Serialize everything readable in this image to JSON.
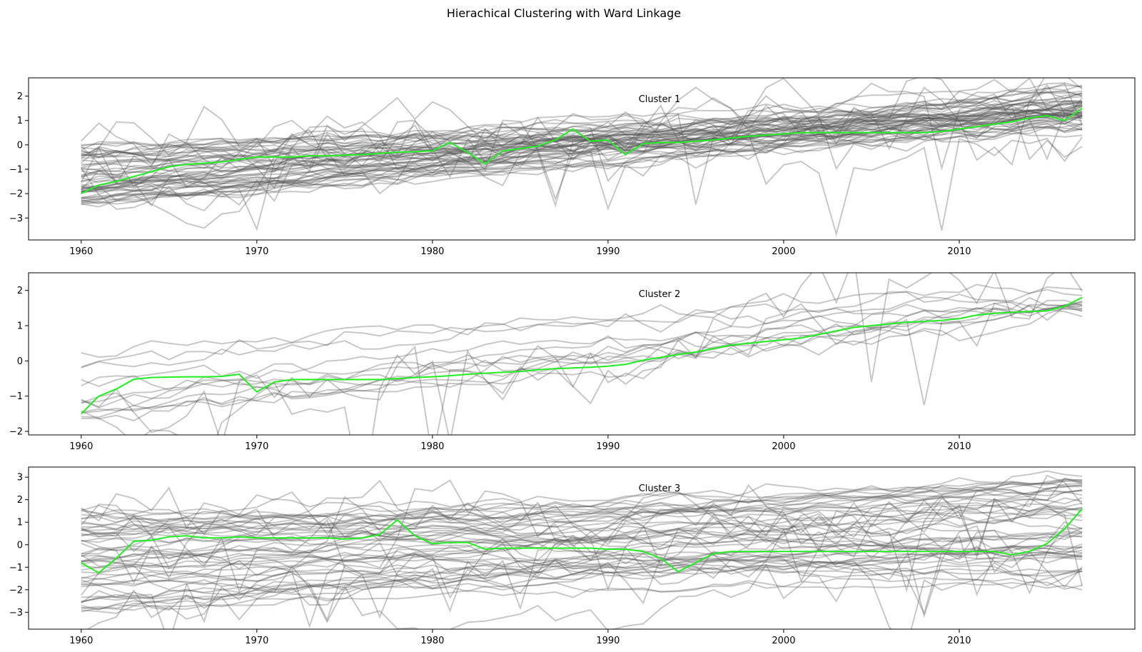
{
  "figure": {
    "suptitle": "Hierachical Clustering with Ward Linkage"
  },
  "chart_data": [
    {
      "type": "line",
      "title": "Cluster 1",
      "xlabel": "",
      "ylabel": "",
      "xlim": [
        1957,
        2020
      ],
      "ylim": [
        -3.9,
        2.75
      ],
      "xticks": [
        1960,
        1970,
        1980,
        1990,
        2000,
        2010
      ],
      "yticks": [
        -3,
        -2,
        -1,
        0,
        1,
        2
      ],
      "grid": false,
      "colors": {
        "members": "#555555",
        "centroid": "#22ee22"
      },
      "centroid": {
        "x": [
          1960,
          1961,
          1962,
          1963,
          1964,
          1965,
          1966,
          1967,
          1968,
          1969,
          1970,
          1971,
          1972,
          1973,
          1974,
          1975,
          1976,
          1977,
          1978,
          1979,
          1980,
          1981,
          1982,
          1983,
          1984,
          1985,
          1986,
          1987,
          1988,
          1989,
          1990,
          1991,
          1992,
          1993,
          1994,
          1995,
          1996,
          1997,
          1998,
          1999,
          2000,
          2001,
          2002,
          2003,
          2004,
          2005,
          2006,
          2007,
          2008,
          2009,
          2010,
          2011,
          2012,
          2013,
          2014,
          2015,
          2016,
          2017
        ],
        "values": [
          -2.0,
          -1.65,
          -1.5,
          -1.3,
          -1.1,
          -0.9,
          -0.8,
          -0.75,
          -0.7,
          -0.6,
          -0.5,
          -0.5,
          -0.5,
          -0.45,
          -0.45,
          -0.42,
          -0.4,
          -0.35,
          -0.3,
          -0.28,
          -0.25,
          0.1,
          -0.3,
          -0.78,
          -0.25,
          -0.15,
          -0.05,
          0.2,
          0.65,
          0.15,
          0.2,
          -0.4,
          0.05,
          0.1,
          0.1,
          0.15,
          0.2,
          0.28,
          0.35,
          0.4,
          0.45,
          0.5,
          0.5,
          0.5,
          0.5,
          0.5,
          0.5,
          0.5,
          0.5,
          0.55,
          0.65,
          0.75,
          0.85,
          0.95,
          1.1,
          1.2,
          1.0,
          1.5
        ]
      },
      "members": {
        "count": 60,
        "start_range": [
          -2.6,
          0.0
        ],
        "end_range": [
          0.6,
          2.4
        ],
        "outliers": 8
      }
    },
    {
      "type": "line",
      "title": "Cluster 2",
      "xlabel": "",
      "ylabel": "",
      "xlim": [
        1957,
        2020
      ],
      "ylim": [
        -2.1,
        2.5
      ],
      "xticks": [
        1960,
        1970,
        1980,
        1990,
        2000,
        2010
      ],
      "yticks": [
        -2,
        -1,
        0,
        1,
        2
      ],
      "grid": false,
      "colors": {
        "members": "#555555",
        "centroid": "#22ee22"
      },
      "centroid": {
        "x": [
          1960,
          1961,
          1962,
          1963,
          1964,
          1965,
          1966,
          1967,
          1968,
          1969,
          1970,
          1971,
          1972,
          1973,
          1974,
          1975,
          1976,
          1977,
          1978,
          1979,
          1980,
          1981,
          1982,
          1983,
          1984,
          1985,
          1986,
          1987,
          1988,
          1989,
          1990,
          1991,
          1992,
          1993,
          1994,
          1995,
          1996,
          1997,
          1998,
          1999,
          2000,
          2001,
          2002,
          2003,
          2004,
          2005,
          2006,
          2007,
          2008,
          2009,
          2010,
          2011,
          2012,
          2013,
          2014,
          2015,
          2016,
          2017
        ],
        "values": [
          -1.5,
          -1.0,
          -0.8,
          -0.52,
          -0.47,
          -0.46,
          -0.45,
          -0.45,
          -0.44,
          -0.38,
          -0.88,
          -0.6,
          -0.53,
          -0.53,
          -0.53,
          -0.53,
          -0.53,
          -0.53,
          -0.5,
          -0.47,
          -0.45,
          -0.42,
          -0.38,
          -0.35,
          -0.32,
          -0.3,
          -0.25,
          -0.22,
          -0.2,
          -0.18,
          -0.15,
          -0.1,
          0.02,
          0.1,
          0.18,
          0.25,
          0.35,
          0.45,
          0.5,
          0.55,
          0.6,
          0.65,
          0.75,
          0.85,
          0.95,
          1.0,
          1.05,
          1.1,
          1.12,
          1.15,
          1.2,
          1.3,
          1.35,
          1.38,
          1.4,
          1.42,
          1.55,
          1.8
        ]
      },
      "members": {
        "count": 14,
        "start_range": [
          -1.9,
          0.3
        ],
        "end_range": [
          1.35,
          2.25
        ],
        "outliers": 2
      }
    },
    {
      "type": "line",
      "title": "Cluster 3",
      "xlabel": "",
      "ylabel": "",
      "xlim": [
        1957,
        2020
      ],
      "ylim": [
        -3.75,
        3.45
      ],
      "xticks": [
        1960,
        1970,
        1980,
        1990,
        2000,
        2010
      ],
      "yticks": [
        -3,
        -2,
        -1,
        0,
        1,
        2,
        3
      ],
      "grid": false,
      "colors": {
        "members": "#555555",
        "centroid": "#22ee22"
      },
      "centroid": {
        "x": [
          1960,
          1961,
          1962,
          1963,
          1964,
          1965,
          1966,
          1967,
          1968,
          1969,
          1970,
          1971,
          1972,
          1973,
          1974,
          1975,
          1976,
          1977,
          1978,
          1979,
          1980,
          1981,
          1982,
          1983,
          1984,
          1985,
          1986,
          1987,
          1988,
          1989,
          1990,
          1991,
          1992,
          1993,
          1994,
          1995,
          1996,
          1997,
          1998,
          1999,
          2000,
          2001,
          2002,
          2003,
          2004,
          2005,
          2006,
          2007,
          2008,
          2009,
          2010,
          2011,
          2012,
          2013,
          2014,
          2015,
          2016,
          2017
        ],
        "values": [
          -0.8,
          -1.25,
          -0.6,
          0.15,
          0.2,
          0.35,
          0.4,
          0.3,
          0.3,
          0.35,
          0.3,
          0.3,
          0.3,
          0.3,
          0.3,
          0.25,
          0.3,
          0.45,
          1.1,
          0.4,
          0.05,
          0.1,
          0.1,
          -0.2,
          -0.15,
          -0.15,
          -0.15,
          -0.15,
          -0.15,
          -0.15,
          -0.2,
          -0.2,
          -0.3,
          -0.6,
          -1.2,
          -0.8,
          -0.4,
          -0.3,
          -0.3,
          -0.3,
          -0.3,
          -0.3,
          -0.3,
          -0.3,
          -0.3,
          -0.3,
          -0.3,
          -0.3,
          -0.3,
          -0.3,
          -0.3,
          -0.3,
          -0.3,
          -0.45,
          -0.3,
          0.05,
          0.7,
          1.6
        ]
      },
      "members": {
        "count": 55,
        "start_range": [
          -3.1,
          1.6
        ],
        "end_range": [
          -1.9,
          3.1
        ],
        "outliers": 10
      }
    }
  ]
}
